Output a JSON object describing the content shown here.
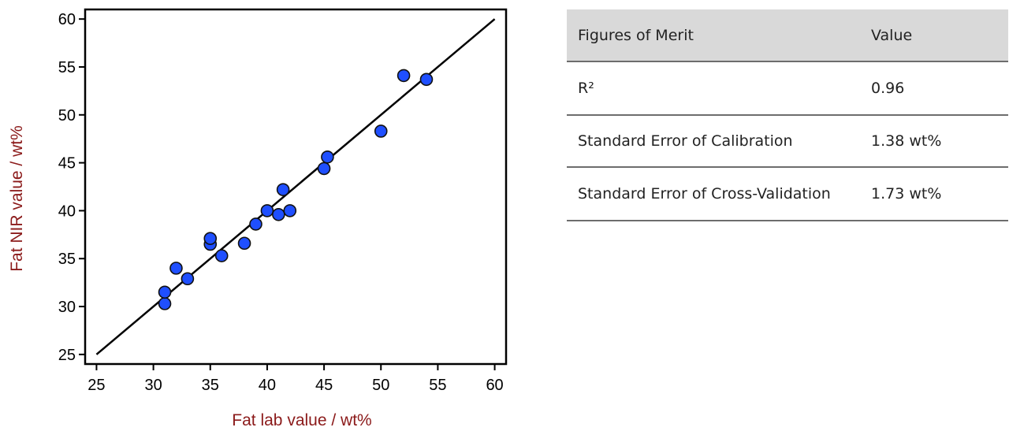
{
  "chart_data": {
    "type": "scatter",
    "xlabel": "Fat lab value / wt%",
    "ylabel": "Fat NIR value / wt%",
    "xlim": [
      24,
      61
    ],
    "ylim": [
      24,
      61
    ],
    "xticks": [
      25,
      30,
      35,
      40,
      45,
      50,
      55,
      60
    ],
    "yticks": [
      25,
      30,
      35,
      40,
      45,
      50,
      55,
      60
    ],
    "grid": false,
    "label_color": "#8b1a1a",
    "point_color": "#1f4fff",
    "points": [
      {
        "x": 31,
        "y": 30.3
      },
      {
        "x": 31,
        "y": 31.5
      },
      {
        "x": 32,
        "y": 34.0
      },
      {
        "x": 33,
        "y": 32.9
      },
      {
        "x": 35,
        "y": 36.5
      },
      {
        "x": 35,
        "y": 37.1
      },
      {
        "x": 36,
        "y": 35.3
      },
      {
        "x": 38,
        "y": 36.6
      },
      {
        "x": 39,
        "y": 38.6
      },
      {
        "x": 40,
        "y": 40.0
      },
      {
        "x": 41,
        "y": 39.6
      },
      {
        "x": 41.4,
        "y": 42.2
      },
      {
        "x": 42,
        "y": 40.0
      },
      {
        "x": 45,
        "y": 44.4
      },
      {
        "x": 45.3,
        "y": 45.6
      },
      {
        "x": 50,
        "y": 48.3
      },
      {
        "x": 52,
        "y": 54.1
      },
      {
        "x": 54,
        "y": 53.7
      }
    ],
    "line": {
      "x": [
        25,
        60
      ],
      "y": [
        25,
        60
      ]
    }
  },
  "table": {
    "header": {
      "col1": "Figures of Merit",
      "col2": "Value"
    },
    "rows": [
      {
        "name": "R²",
        "value": "0.96"
      },
      {
        "name": "Standard Error of Calibration",
        "value": "1.38 wt%"
      },
      {
        "name": "Standard Error of Cross-Validation",
        "value": "1.73 wt%"
      }
    ]
  }
}
